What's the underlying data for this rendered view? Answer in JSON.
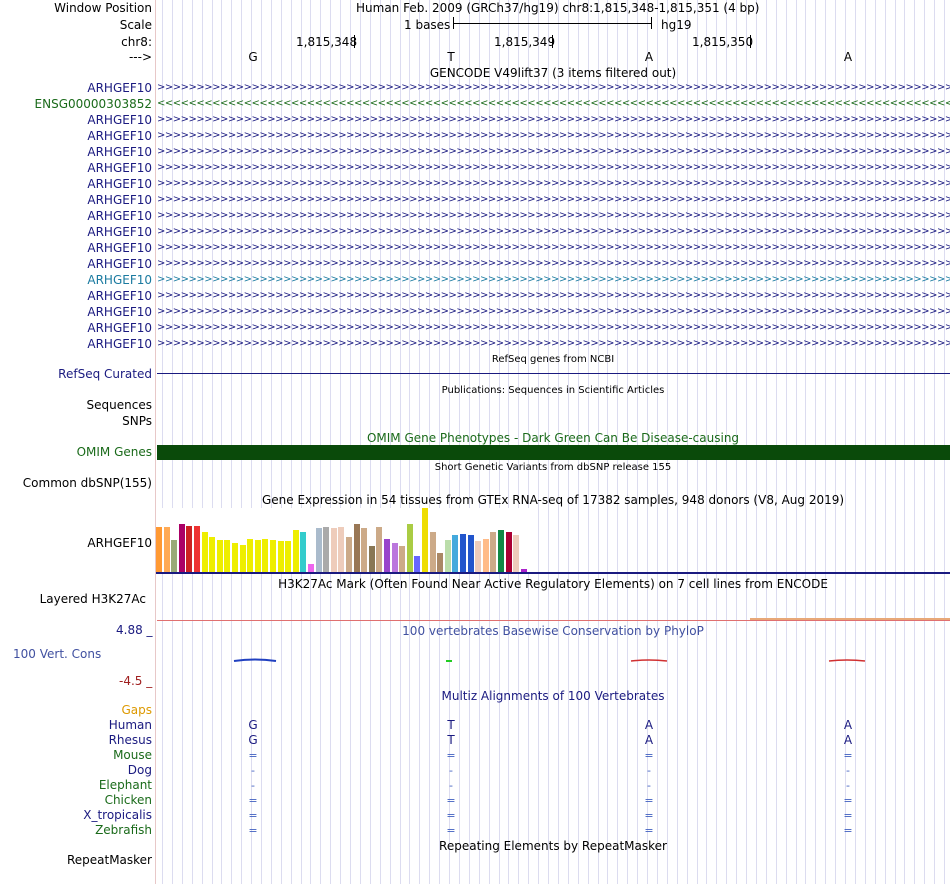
{
  "header": {
    "window_position_label": "Window Position",
    "scale_label": "Scale",
    "chrom_label": "chr8:",
    "strand_label": "--->",
    "assembly_text": "Human Feb. 2009 (GRCh37/hg19)   chr8:1,815,348-1,815,351 (4 bp)",
    "scale_text": "1 bases",
    "db_text": "hg19",
    "positions": [
      "1,815,348",
      "1,815,349",
      "1,815,350"
    ],
    "bases": [
      "G",
      "T",
      "A",
      "A"
    ]
  },
  "gencode": {
    "title": "GENCODE V49lift37 (3 items filtered out)",
    "items": [
      {
        "label": "ARHGEF10",
        "strand": "+",
        "color": "#1a1a80"
      },
      {
        "label": "ENSG00000303852",
        "strand": "-",
        "color": "#1a6a1a"
      },
      {
        "label": "ARHGEF10",
        "strand": "+",
        "color": "#1a1a80"
      },
      {
        "label": "ARHGEF10",
        "strand": "+",
        "color": "#1a1a80"
      },
      {
        "label": "ARHGEF10",
        "strand": "+",
        "color": "#1a1a80"
      },
      {
        "label": "ARHGEF10",
        "strand": "+",
        "color": "#1a1a80"
      },
      {
        "label": "ARHGEF10",
        "strand": "+",
        "color": "#1a1a80"
      },
      {
        "label": "ARHGEF10",
        "strand": "+",
        "color": "#1a1a80"
      },
      {
        "label": "ARHGEF10",
        "strand": "+",
        "color": "#1a1a80"
      },
      {
        "label": "ARHGEF10",
        "strand": "+",
        "color": "#1a1a80"
      },
      {
        "label": "ARHGEF10",
        "strand": "+",
        "color": "#1a1a80"
      },
      {
        "label": "ARHGEF10",
        "strand": "+",
        "color": "#1a1a80"
      },
      {
        "label": "ARHGEF10",
        "strand": "+",
        "color": "#1a7aa0"
      },
      {
        "label": "ARHGEF10",
        "strand": "+",
        "color": "#1a1a80"
      },
      {
        "label": "ARHGEF10",
        "strand": "+",
        "color": "#1a1a80"
      },
      {
        "label": "ARHGEF10",
        "strand": "+",
        "color": "#1a1a80"
      },
      {
        "label": "ARHGEF10",
        "strand": "+",
        "color": "#1a1a80"
      }
    ]
  },
  "refseq": {
    "title": "RefSeq genes from NCBI",
    "label": "RefSeq Curated"
  },
  "publications": {
    "title": "Publications: Sequences in Scientific Articles",
    "label1": "Sequences",
    "label2": "SNPs"
  },
  "omim": {
    "title": "OMIM Gene Phenotypes - Dark Green Can Be Disease-causing",
    "label": "OMIM Genes"
  },
  "dbsnp": {
    "title": "Short Genetic Variants from dbSNP release 155",
    "label": "Common dbSNP(155)"
  },
  "gtex": {
    "title": "Gene Expression in 54 tissues from GTEx RNA-seq of 17382 samples, 948 donors (V8, Aug 2019)",
    "label": "ARHGEF10",
    "bars": [
      {
        "v": 0.7,
        "c": "#ff9933"
      },
      {
        "v": 0.7,
        "c": "#ffaa55"
      },
      {
        "v": 0.5,
        "c": "#99aa77"
      },
      {
        "v": 0.75,
        "c": "#aa0066"
      },
      {
        "v": 0.72,
        "c": "#cc2222"
      },
      {
        "v": 0.72,
        "c": "#ee3333"
      },
      {
        "v": 0.62,
        "c": "#eeee00"
      },
      {
        "v": 0.55,
        "c": "#eeee00"
      },
      {
        "v": 0.5,
        "c": "#eeee00"
      },
      {
        "v": 0.5,
        "c": "#eeee00"
      },
      {
        "v": 0.45,
        "c": "#eeee00"
      },
      {
        "v": 0.42,
        "c": "#eeee00"
      },
      {
        "v": 0.52,
        "c": "#eeee00"
      },
      {
        "v": 0.5,
        "c": "#eeee00"
      },
      {
        "v": 0.52,
        "c": "#eeee00"
      },
      {
        "v": 0.5,
        "c": "#eeee00"
      },
      {
        "v": 0.48,
        "c": "#eeee00"
      },
      {
        "v": 0.48,
        "c": "#eeee00"
      },
      {
        "v": 0.65,
        "c": "#eeee00"
      },
      {
        "v": 0.62,
        "c": "#33cccc"
      },
      {
        "v": 0.12,
        "c": "#ee66ee"
      },
      {
        "v": 0.68,
        "c": "#aabbcc"
      },
      {
        "v": 0.7,
        "c": "#aaaaaa"
      },
      {
        "v": 0.68,
        "c": "#eeccbb"
      },
      {
        "v": 0.7,
        "c": "#eeccbb"
      },
      {
        "v": 0.55,
        "c": "#ccaa88"
      },
      {
        "v": 0.75,
        "c": "#997755"
      },
      {
        "v": 0.68,
        "c": "#ccaa88"
      },
      {
        "v": 0.4,
        "c": "#887755"
      },
      {
        "v": 0.7,
        "c": "#ccaa88"
      },
      {
        "v": 0.52,
        "c": "#9944cc"
      },
      {
        "v": 0.45,
        "c": "#bb77dd"
      },
      {
        "v": 0.4,
        "c": "#ccaa88"
      },
      {
        "v": 0.75,
        "c": "#aacc44"
      },
      {
        "v": 0.25,
        "c": "#6666ff"
      },
      {
        "v": 1.0,
        "c": "#eedd00"
      },
      {
        "v": 0.62,
        "c": "#ccaa88"
      },
      {
        "v": 0.3,
        "c": "#aa8866"
      },
      {
        "v": 0.5,
        "c": "#bbddaa"
      },
      {
        "v": 0.58,
        "c": "#44aadd"
      },
      {
        "v": 0.6,
        "c": "#2255cc"
      },
      {
        "v": 0.58,
        "c": "#2255cc"
      },
      {
        "v": 0.48,
        "c": "#eeccbb"
      },
      {
        "v": 0.52,
        "c": "#ffbb88"
      },
      {
        "v": 0.62,
        "c": "#ccaa88"
      },
      {
        "v": 0.65,
        "c": "#118844"
      },
      {
        "v": 0.62,
        "c": "#aa0033"
      },
      {
        "v": 0.58,
        "c": "#eeccbb"
      },
      {
        "v": 0.05,
        "c": "#aa22cc"
      }
    ]
  },
  "h3k27ac": {
    "title": "H3K27Ac Mark (Often Found Near Active Regulatory Elements) on 7 cell lines from ENCODE",
    "label": "Layered H3K27Ac"
  },
  "cons": {
    "title": "100 vertebrates Basewise Conservation by PhyloP",
    "label": "100 Vert. Cons",
    "max_label": "4.88 _",
    "min_label": "-4.5 _"
  },
  "multiz": {
    "title": "Multiz Alignments of 100 Vertebrates",
    "rows": [
      {
        "label": "Gaps",
        "color": "#dd9900",
        "bases": [
          "",
          "",
          "",
          ""
        ]
      },
      {
        "label": "Human",
        "color": "#1a1a80",
        "bases": [
          "G",
          "T",
          "A",
          "A"
        ]
      },
      {
        "label": "Rhesus",
        "color": "#1a1a80",
        "bases": [
          "G",
          "T",
          "A",
          "A"
        ]
      },
      {
        "label": "Mouse",
        "color": "#1a6a1a",
        "bases": [
          "=",
          "=",
          "=",
          "="
        ]
      },
      {
        "label": "Dog",
        "color": "#1a1a80",
        "bases": [
          "-",
          "-",
          "-",
          "-"
        ]
      },
      {
        "label": "Elephant",
        "color": "#1a6a1a",
        "bases": [
          "-",
          "-",
          "-",
          "-"
        ]
      },
      {
        "label": "Chicken",
        "color": "#1a6a1a",
        "bases": [
          "=",
          "=",
          "=",
          "="
        ]
      },
      {
        "label": "X_tropicalis",
        "color": "#1a1a80",
        "bases": [
          "=",
          "=",
          "=",
          "="
        ]
      },
      {
        "label": "Zebrafish",
        "color": "#1a6a1a",
        "bases": [
          "=",
          "=",
          "=",
          "="
        ]
      }
    ]
  },
  "repeatmasker": {
    "title": "Repeating Elements by RepeatMasker",
    "label": "RepeatMasker"
  }
}
